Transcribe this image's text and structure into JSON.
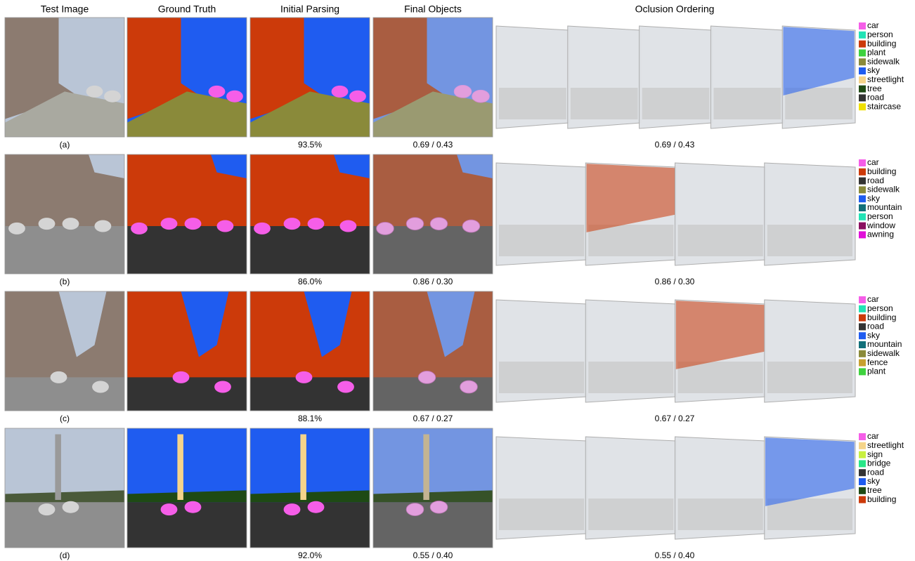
{
  "headers": [
    "Test Image",
    "Ground Truth",
    "Initial Parsing",
    "Final Objects",
    "Oclusion Ordering"
  ],
  "rows": [
    {
      "label": "(a)",
      "parsing_accuracy": "93.5%",
      "final_score": "0.69 / 0.43",
      "ordering_score": "0.69 / 0.43",
      "legend": [
        {
          "name": "car",
          "color": "#f55ee8"
        },
        {
          "name": "person",
          "color": "#22e3b5"
        },
        {
          "name": "building",
          "color": "#cc3a0a"
        },
        {
          "name": "plant",
          "color": "#3ed23e"
        },
        {
          "name": "sidewalk",
          "color": "#8a8a3a"
        },
        {
          "name": "sky",
          "color": "#1f5cf0"
        },
        {
          "name": "streetlight",
          "color": "#f5d48a"
        },
        {
          "name": "tree",
          "color": "#1e4a14"
        },
        {
          "name": "road",
          "color": "#333333"
        },
        {
          "name": "staircase",
          "color": "#f0e000"
        }
      ]
    },
    {
      "label": "(b)",
      "parsing_accuracy": "86.0%",
      "final_score": "0.86 / 0.30",
      "ordering_score": "0.86 / 0.30",
      "legend": [
        {
          "name": "car",
          "color": "#f55ee8"
        },
        {
          "name": "building",
          "color": "#cc3a0a"
        },
        {
          "name": "road",
          "color": "#333333"
        },
        {
          "name": "sidewalk",
          "color": "#8a8a3a"
        },
        {
          "name": "sky",
          "color": "#1f5cf0"
        },
        {
          "name": "mountain",
          "color": "#12707a"
        },
        {
          "name": "person",
          "color": "#22e3b5"
        },
        {
          "name": "window",
          "color": "#8a1060"
        },
        {
          "name": "awning",
          "color": "#e010d8"
        }
      ]
    },
    {
      "label": "(c)",
      "parsing_accuracy": "88.1%",
      "final_score": "0.67 / 0.27",
      "ordering_score": "0.67 / 0.27",
      "legend": [
        {
          "name": "car",
          "color": "#f55ee8"
        },
        {
          "name": "person",
          "color": "#22e3b5"
        },
        {
          "name": "building",
          "color": "#cc3a0a"
        },
        {
          "name": "road",
          "color": "#333333"
        },
        {
          "name": "sky",
          "color": "#1f5cf0"
        },
        {
          "name": "mountain",
          "color": "#12707a"
        },
        {
          "name": "sidewalk",
          "color": "#8a8a3a"
        },
        {
          "name": "fence",
          "color": "#c8a030"
        },
        {
          "name": "plant",
          "color": "#3ed23e"
        }
      ]
    },
    {
      "label": "(d)",
      "parsing_accuracy": "92.0%",
      "final_score": "0.55 / 0.40",
      "ordering_score": "0.55 / 0.40",
      "legend": [
        {
          "name": "car",
          "color": "#f55ee8"
        },
        {
          "name": "streetlight",
          "color": "#f5d48a"
        },
        {
          "name": "sign",
          "color": "#c8f040"
        },
        {
          "name": "bridge",
          "color": "#28e888"
        },
        {
          "name": "road",
          "color": "#333333"
        },
        {
          "name": "sky",
          "color": "#1f5cf0"
        },
        {
          "name": "tree",
          "color": "#1e4a14"
        },
        {
          "name": "building",
          "color": "#cc3a0a"
        }
      ]
    }
  ]
}
